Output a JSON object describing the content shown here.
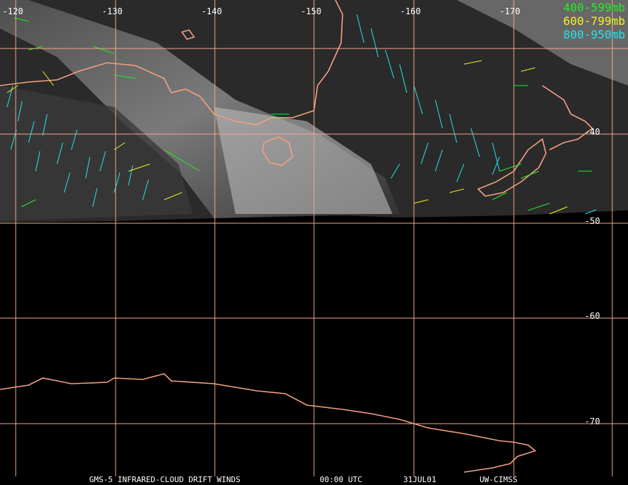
{
  "map": {
    "lon_labels": [
      "-120",
      "-130",
      "-140",
      "-150",
      "-160",
      "-170"
    ],
    "lat_labels": [
      "-40",
      "-50",
      "-60",
      "-70"
    ],
    "legend": [
      {
        "label": "400-599mb",
        "color": "#22ee22"
      },
      {
        "label": "600-799mb",
        "color": "#f2f222"
      },
      {
        "label": "800-950mb",
        "color": "#22e6ee"
      }
    ],
    "footer": [
      "GMS-5 INFRARED-CLOUD DRIFT WINDS",
      "00:00 UTC",
      "31JUL01",
      "UW-CIMSS"
    ]
  }
}
